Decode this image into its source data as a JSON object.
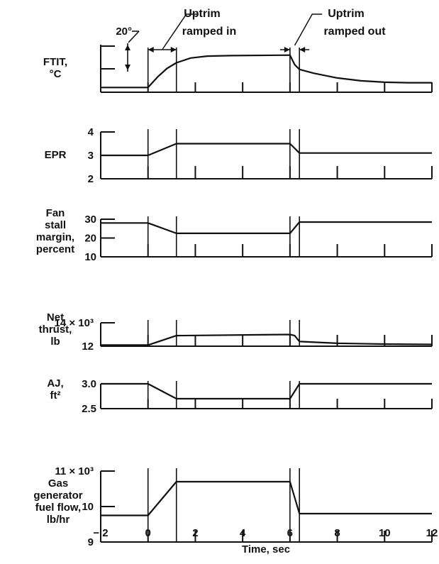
{
  "chart_data": {
    "type": "line",
    "xlabel": "Time, sec",
    "x_ticks": [
      "− 2",
      "0",
      "2",
      "4",
      "6",
      "8",
      "10",
      "12"
    ],
    "xlim": [
      -2,
      12
    ],
    "annotations": {
      "ramp_in": "Uptrim\nramped in",
      "ramp_out": "Uptrim\nramped out",
      "scale_bar": "20°"
    },
    "panels": [
      {
        "ylabel": "FTIT,\n°C",
        "ylim": [
          0,
          100
        ],
        "y_ticks": [],
        "series": {
          "x": [
            -2,
            0,
            0.4,
            0.8,
            1.2,
            1.8,
            2.5,
            3.5,
            6.0,
            6.2,
            6.4,
            7.0,
            8.0,
            9.0,
            10.0,
            11.0,
            12.0
          ],
          "y": [
            10,
            10,
            32,
            50,
            62,
            72,
            76,
            77,
            78,
            58,
            48,
            40,
            30,
            24,
            21,
            20,
            20
          ]
        }
      },
      {
        "ylabel": "EPR",
        "ylim": [
          2,
          4
        ],
        "y_ticks": [
          "4",
          "3",
          "2"
        ],
        "series": {
          "x": [
            -2,
            0,
            1.2,
            6.0,
            6.4,
            12.0
          ],
          "y": [
            3.0,
            3.0,
            3.5,
            3.5,
            3.1,
            3.1
          ]
        }
      },
      {
        "ylabel": "Fan\nstall\nmargin,\npercent",
        "ylim": [
          10,
          30
        ],
        "y_ticks": [
          "30",
          "20",
          "10"
        ],
        "series": {
          "x": [
            -2,
            0,
            1.2,
            6.0,
            6.4,
            12.0
          ],
          "y": [
            28,
            28,
            22.5,
            22.5,
            28.5,
            28.5
          ]
        }
      },
      {
        "ylabel": "Net\nthrust,\nlb",
        "ylim": [
          12,
          14
        ],
        "y_ticks": [
          "14 × 10³",
          "12"
        ],
        "series": {
          "x": [
            -2,
            0,
            1.2,
            6.0,
            6.2,
            6.4,
            8.0,
            10.0,
            12.0
          ],
          "y": [
            12.1,
            12.1,
            12.9,
            13.0,
            12.9,
            12.4,
            12.25,
            12.18,
            12.15
          ]
        }
      },
      {
        "ylabel": "AJ,\nft²",
        "ylim": [
          2.5,
          3.0
        ],
        "y_ticks": [
          "3.0",
          "2.5"
        ],
        "series": {
          "x": [
            -2,
            0,
            1.2,
            6.0,
            6.4,
            12.0
          ],
          "y": [
            3.0,
            3.0,
            2.7,
            2.7,
            3.0,
            3.0
          ]
        }
      },
      {
        "ylabel": "Gas\ngenerator\nfuel flow,\nlb/hr",
        "ylim": [
          9,
          11
        ],
        "y_ticks": [
          "11 × 10³",
          "10",
          "9"
        ],
        "series": {
          "x": [
            -2,
            0,
            1.2,
            6.0,
            6.4,
            12.0
          ],
          "y": [
            9.75,
            9.75,
            10.7,
            10.7,
            9.8,
            9.8
          ]
        }
      }
    ]
  }
}
